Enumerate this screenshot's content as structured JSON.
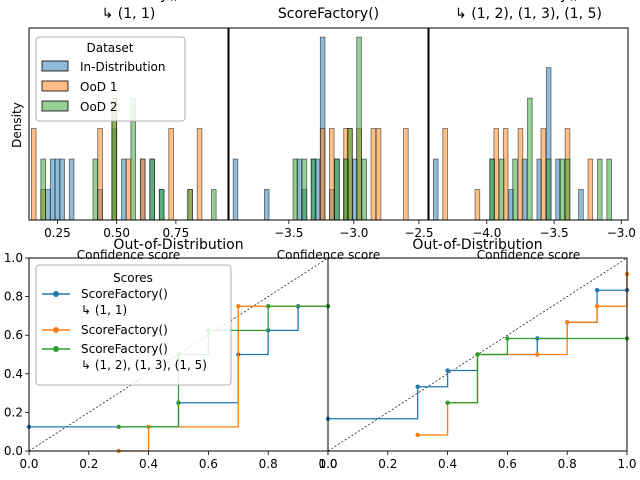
{
  "colors": {
    "in_distribution": "#1f77b4",
    "ood1": "#ff7f0e",
    "ood2": "#2ca02c"
  },
  "chart_data": [
    {
      "type": "histogram",
      "title_lines": [
        "ScoreFactory()",
        "↳ (1, 1)"
      ],
      "xlabel": "Confidence score",
      "ylabel": "Density",
      "xlim": [
        0.13,
        0.97
      ],
      "ylim": [
        0,
        6.3
      ],
      "xticks": [
        0.25,
        0.5,
        0.75
      ],
      "xtick_labels": [
        "0.25",
        "0.50",
        "0.75"
      ],
      "bin_width": 0.02,
      "legend": {
        "title": "Dataset",
        "placement": "upper-left",
        "entries": [
          "In-Distribution",
          "OoD 1",
          "OoD 2"
        ]
      },
      "series": [
        {
          "name": "In-Distribution",
          "bins": [
            [
              0.21,
              1
            ],
            [
              0.23,
              2
            ],
            [
              0.25,
              2
            ],
            [
              0.27,
              2
            ],
            [
              0.31,
              2
            ],
            [
              0.43,
              1
            ],
            [
              0.49,
              3
            ],
            [
              0.53,
              2
            ],
            [
              0.61,
              2
            ],
            [
              0.65,
              2
            ],
            [
              0.69,
              1
            ]
          ]
        },
        {
          "name": "OoD 1",
          "bins": [
            [
              0.15,
              3
            ],
            [
              0.19,
              1
            ],
            [
              0.43,
              3
            ],
            [
              0.49,
              4
            ],
            [
              0.55,
              2
            ],
            [
              0.61,
              2
            ],
            [
              0.73,
              3
            ],
            [
              0.81,
              1
            ],
            [
              0.85,
              3
            ]
          ]
        },
        {
          "name": "OoD 2",
          "bins": [
            [
              0.19,
              2
            ],
            [
              0.41,
              2
            ],
            [
              0.49,
              4
            ],
            [
              0.57,
              4
            ],
            [
              0.65,
              2
            ],
            [
              0.69,
              1
            ],
            [
              0.81,
              1
            ],
            [
              0.91,
              1
            ]
          ]
        }
      ]
    },
    {
      "type": "histogram",
      "title_lines": [
        "ScoreFactory()"
      ],
      "xlabel": "Confidence score",
      "ylabel": "",
      "xlim": [
        -3.96,
        -2.43
      ],
      "ylim": [
        0,
        6.3
      ],
      "xticks": [
        -3.5,
        -3.0,
        -2.5
      ],
      "xtick_labels": [
        "−3.5",
        "−3.0",
        "−2.5"
      ],
      "bin_width": 0.036,
      "series": [
        {
          "name": "In-Distribution",
          "bins": [
            [
              -3.91,
              2
            ],
            [
              -3.67,
              1
            ],
            [
              -3.42,
              2
            ],
            [
              -3.38,
              1
            ],
            [
              -3.31,
              2
            ],
            [
              -3.28,
              2
            ],
            [
              -3.24,
              6
            ],
            [
              -3.17,
              1
            ],
            [
              -3.13,
              2
            ],
            [
              -3.06,
              2
            ],
            [
              -2.99,
              2
            ]
          ]
        },
        {
          "name": "OoD 1",
          "bins": [
            [
              -3.24,
              3
            ],
            [
              -3.17,
              3
            ],
            [
              -3.06,
              3
            ],
            [
              -3.03,
              3
            ],
            [
              -2.96,
              3
            ],
            [
              -2.85,
              3
            ],
            [
              -2.81,
              3
            ],
            [
              -2.6,
              3
            ]
          ]
        },
        {
          "name": "OoD 2",
          "bins": [
            [
              -3.45,
              2
            ],
            [
              -3.38,
              2
            ],
            [
              -3.31,
              2
            ],
            [
              -3.13,
              2
            ],
            [
              -3.06,
              2
            ],
            [
              -3.03,
              3
            ],
            [
              -2.96,
              6
            ],
            [
              -2.92,
              2
            ]
          ]
        }
      ]
    },
    {
      "type": "histogram",
      "title_lines": [
        "ScoreFactory()",
        "↳ (1, 2), (1, 3), (1, 5)"
      ],
      "xlabel": "Confidence score",
      "ylabel": "",
      "xlim": [
        -4.43,
        -2.95
      ],
      "ylim": [
        0,
        6.3
      ],
      "xticks": [
        -4.0,
        -3.5,
        -3.0
      ],
      "xtick_labels": [
        "−4.0",
        "−3.5",
        "−3.0"
      ],
      "bin_width": 0.035,
      "series": [
        {
          "name": "In-Distribution",
          "bins": [
            [
              -4.38,
              2
            ],
            [
              -3.96,
              2
            ],
            [
              -3.82,
              1
            ],
            [
              -3.72,
              2
            ],
            [
              -3.61,
              2
            ],
            [
              -3.54,
              5
            ],
            [
              -3.47,
              2
            ],
            [
              -3.3,
              1
            ]
          ]
        },
        {
          "name": "OoD 1",
          "bins": [
            [
              -4.31,
              3
            ],
            [
              -4.07,
              1
            ],
            [
              -3.93,
              3
            ],
            [
              -3.86,
              3
            ],
            [
              -3.75,
              3
            ],
            [
              -3.58,
              3
            ],
            [
              -3.4,
              3
            ],
            [
              -3.23,
              2
            ]
          ]
        },
        {
          "name": "OoD 2",
          "bins": [
            [
              -3.96,
              2
            ],
            [
              -3.89,
              2
            ],
            [
              -3.79,
              2
            ],
            [
              -3.68,
              4
            ],
            [
              -3.54,
              2
            ],
            [
              -3.44,
              2
            ],
            [
              -3.4,
              2
            ],
            [
              -3.16,
              2
            ],
            [
              -3.09,
              2
            ]
          ]
        }
      ]
    },
    {
      "type": "line",
      "step": true,
      "title": "Out-of-Distribution",
      "xlim": [
        0,
        1
      ],
      "ylim": [
        0,
        1
      ],
      "xticks": [
        0,
        0.2,
        0.4,
        0.6,
        0.8,
        1.0
      ],
      "xtick_labels": [
        "0.0",
        "0.2",
        "0.4",
        "0.6",
        "0.8",
        "1.0"
      ],
      "yticks": [
        0,
        0.2,
        0.4,
        0.6,
        0.8,
        1.0
      ],
      "ytick_labels": [
        "0.0",
        "0.2",
        "0.4",
        "0.6",
        "0.8",
        "1.0"
      ],
      "diagonal": true,
      "legend": {
        "title": "Scores",
        "placement": "upper-left",
        "entries": [
          [
            "ScoreFactory()",
            "↳ (1, 1)"
          ],
          [
            "ScoreFactory()"
          ],
          [
            "ScoreFactory()",
            "↳ (1, 2), (1, 3), (1, 5)"
          ]
        ]
      },
      "series": [
        {
          "name": "ScoreFactory() ↳ (1, 1)",
          "points": [
            [
              0,
              0.125
            ],
            [
              0.5,
              0.25
            ],
            [
              0.7,
              0.5
            ],
            [
              0.8,
              0.625
            ],
            [
              0.9,
              0.75
            ],
            [
              1.0,
              0.75
            ]
          ]
        },
        {
          "name": "ScoreFactory()",
          "points": [
            [
              0.3,
              0
            ],
            [
              0.4,
              0.125
            ],
            [
              0.7,
              0.75
            ],
            [
              1.0,
              0.75
            ]
          ]
        },
        {
          "name": "ScoreFactory() ↳ (1, 2), (1, 3), (1, 5)",
          "points": [
            [
              0.3,
              0.125
            ],
            [
              0.5,
              0.5
            ],
            [
              0.6,
              0.625
            ],
            [
              0.8,
              0.75
            ],
            [
              1.0,
              0.75
            ]
          ]
        }
      ]
    },
    {
      "type": "line",
      "step": true,
      "title": "Out-of-Distribution",
      "xlim": [
        0,
        1
      ],
      "ylim": [
        0,
        1
      ],
      "xticks": [
        0,
        0.2,
        0.4,
        0.6,
        0.8,
        1.0
      ],
      "xtick_labels": [
        "0.0",
        "0.2",
        "0.4",
        "0.6",
        "0.8",
        "1.0"
      ],
      "diagonal": true,
      "series": [
        {
          "name": "ScoreFactory() ↳ (1, 1)",
          "points": [
            [
              0,
              0.167
            ],
            [
              0.3,
              0.333
            ],
            [
              0.4,
              0.417
            ],
            [
              0.5,
              0.5
            ],
            [
              0.7,
              0.583
            ],
            [
              0.8,
              0.667
            ],
            [
              0.9,
              0.833
            ],
            [
              1.0,
              0.833
            ]
          ]
        },
        {
          "name": "ScoreFactory()",
          "points": [
            [
              0.3,
              0.083
            ],
            [
              0.4,
              0.25
            ],
            [
              0.5,
              0.5
            ],
            [
              0.7,
              0.5
            ],
            [
              0.8,
              0.667
            ],
            [
              0.9,
              0.75
            ],
            [
              1.0,
              0.917
            ]
          ]
        },
        {
          "name": "ScoreFactory() ↳ (1, 2), (1, 3), (1, 5)",
          "points": [
            [
              0.4,
              0.25
            ],
            [
              0.5,
              0.5
            ],
            [
              0.6,
              0.583
            ],
            [
              1.0,
              0.583
            ]
          ]
        }
      ]
    }
  ]
}
